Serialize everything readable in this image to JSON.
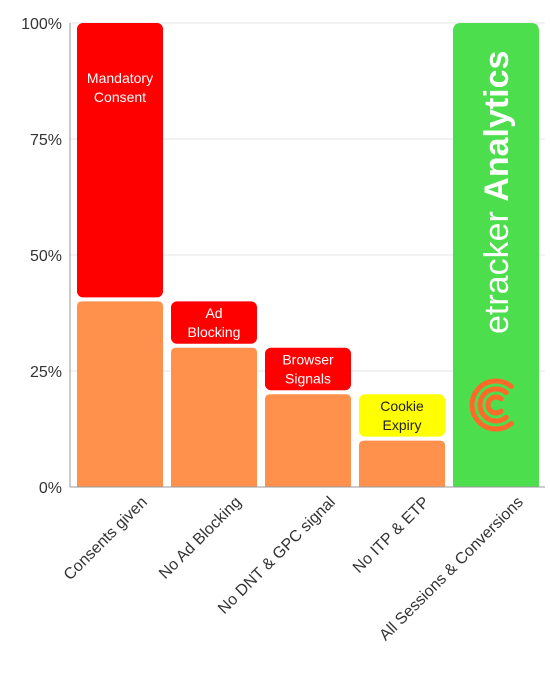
{
  "chart_data": {
    "type": "bar",
    "categories": [
      "Consents given",
      "No Ad Blocking",
      "No DNT & GPC signal",
      "No ITP & ETP",
      "All Sessions & Conversions"
    ],
    "y_ticks": [
      "0%",
      "25%",
      "50%",
      "75%",
      "100%"
    ],
    "ylim": [
      0,
      100
    ],
    "grid": true,
    "bars": [
      {
        "category": "Consents given",
        "value": 40,
        "segments": [
          {
            "label": "Mandatory Consent",
            "from": 40,
            "to": 100,
            "color": "#ff0000",
            "text_color": "#ffffff"
          }
        ]
      },
      {
        "category": "No Ad Blocking",
        "value": 30,
        "segments": [
          {
            "label": "Ad Blocking",
            "from": 30,
            "to": 40,
            "color": "#ff0000",
            "text_color": "#ffffff"
          }
        ]
      },
      {
        "category": "No DNT & GPC signal",
        "value": 20,
        "segments": [
          {
            "label": "Browser Signals",
            "from": 20,
            "to": 30,
            "color": "#ff0000",
            "text_color": "#ffffff"
          }
        ]
      },
      {
        "category": "No ITP & ETP",
        "value": 10,
        "segments": [
          {
            "label": "Cookie Expiry",
            "from": 10,
            "to": 20,
            "color": "#ffff00",
            "text_color": "#222222"
          }
        ]
      },
      {
        "category": "All Sessions & Conversions",
        "value": 100,
        "segments": []
      }
    ],
    "colors": {
      "base_bar": "#ff914d",
      "full_bar": "#4cde4c",
      "grid": "#e6e6e6",
      "axis": "#9a9a9a"
    }
  },
  "brand": {
    "light": "etracker",
    "bold": "Analytics",
    "logo": "etracker-logo-icon",
    "logo_color": "#ff6a2a"
  }
}
